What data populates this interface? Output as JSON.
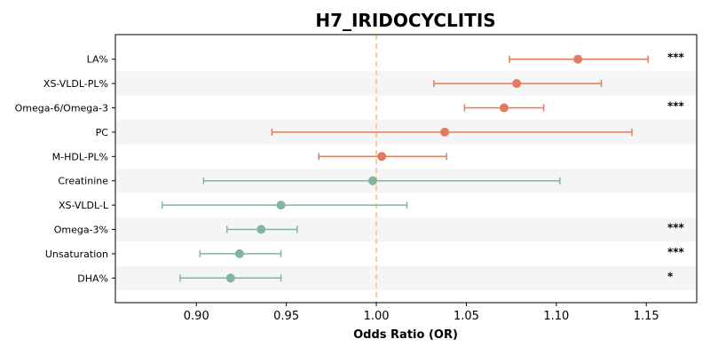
{
  "chart_data": {
    "type": "forest",
    "title": "H7_IRIDOCYCLITIS",
    "xlabel": "Odds Ratio (OR)",
    "xlim": [
      0.855,
      1.178
    ],
    "xticks": [
      0.9,
      0.95,
      1.0,
      1.05,
      1.1,
      1.15
    ],
    "reference_line": 1.0,
    "colors": {
      "risk": "#e07b5f",
      "protective": "#82b59e",
      "reference": "#f2c27e",
      "band": "#f5f5f5"
    },
    "rows": [
      {
        "label": "LA%",
        "or": 1.112,
        "lower": 1.074,
        "upper": 1.151,
        "sig": "***"
      },
      {
        "label": "XS-VLDL-PL%",
        "or": 1.078,
        "lower": 1.032,
        "upper": 1.125,
        "sig": ""
      },
      {
        "label": "Omega-6/Omega-3",
        "or": 1.071,
        "lower": 1.049,
        "upper": 1.093,
        "sig": "***"
      },
      {
        "label": "PC",
        "or": 1.038,
        "lower": 0.942,
        "upper": 1.142,
        "sig": ""
      },
      {
        "label": "M-HDL-PL%",
        "or": 1.003,
        "lower": 0.968,
        "upper": 1.039,
        "sig": ""
      },
      {
        "label": "Creatinine",
        "or": 0.998,
        "lower": 0.904,
        "upper": 1.102,
        "sig": ""
      },
      {
        "label": "XS-VLDL-L",
        "or": 0.947,
        "lower": 0.881,
        "upper": 1.017,
        "sig": ""
      },
      {
        "label": "Omega-3%",
        "or": 0.936,
        "lower": 0.917,
        "upper": 0.956,
        "sig": "***"
      },
      {
        "label": "Unsaturation",
        "or": 0.924,
        "lower": 0.902,
        "upper": 0.947,
        "sig": "***"
      },
      {
        "label": "DHA%",
        "or": 0.919,
        "lower": 0.891,
        "upper": 0.947,
        "sig": "*"
      }
    ]
  }
}
